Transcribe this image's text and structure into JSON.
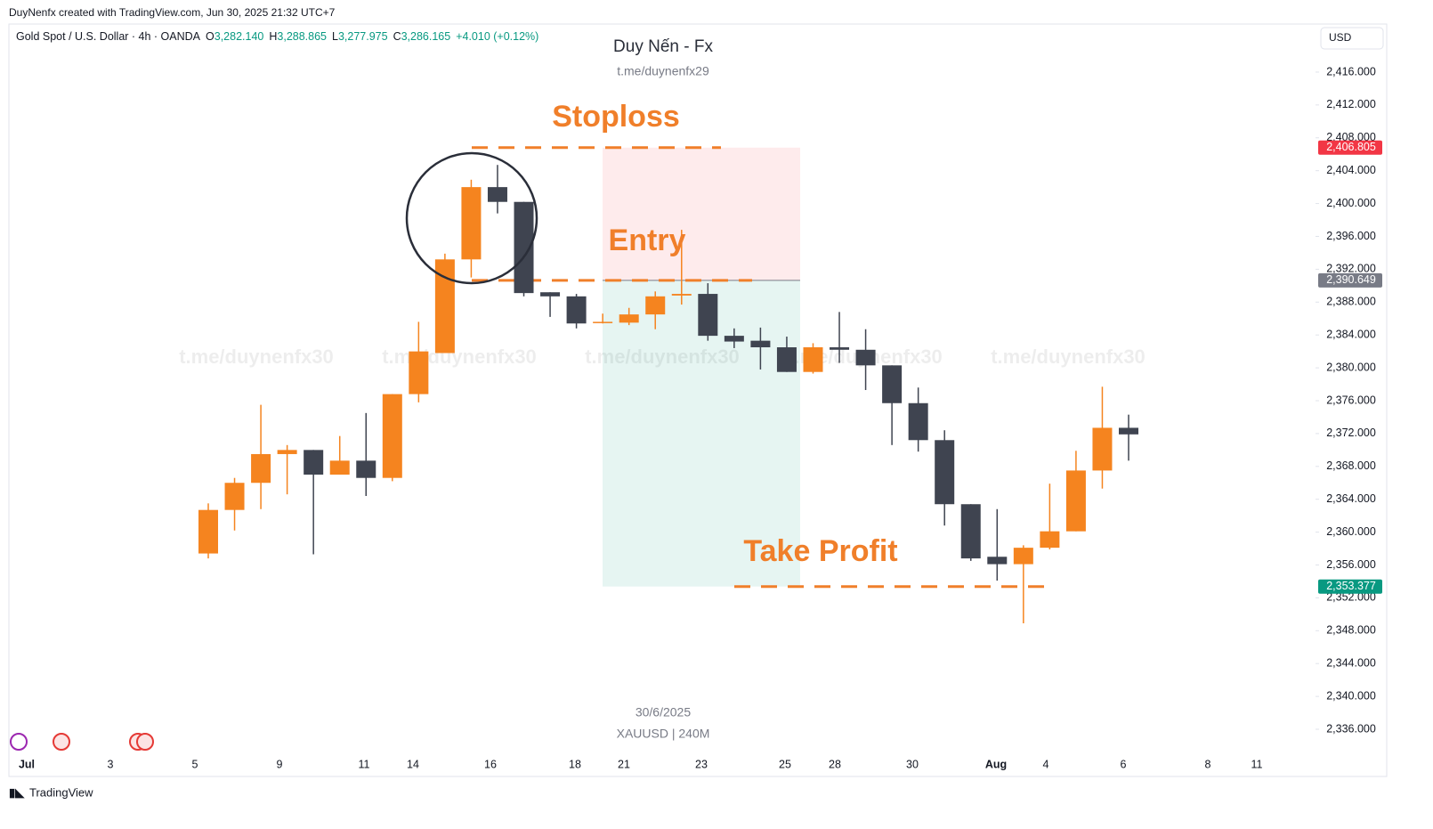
{
  "header": {
    "credit": "DuyNenfx created with TradingView.com, Jun 30, 2025 21:32 UTC+7",
    "symbol": "Gold Spot / U.S. Dollar · 4h · OANDA",
    "o_label": "O",
    "o": "3,282.140",
    "h_label": "H",
    "h": "3,288.865",
    "l_label": "L",
    "l": "3,277.975",
    "c_label": "C",
    "c": "3,286.165",
    "change": "+4.010 (+0.12%)",
    "currency": "USD",
    "brand": "TradingView"
  },
  "chart_data": {
    "type": "candlestick",
    "title": "Duy Nến - Fx",
    "subtitle": "t.me/duynenfx29",
    "footer_date": "30/6/2025",
    "footer_symbol": "XAUUSD | 240M",
    "watermarks": [
      "t.me/duynenfx30",
      "t.me/duynenfx30",
      "t.me/duynenfx30",
      "t.me/duynenfx30",
      "t.me/duynenfx30"
    ],
    "up_color": "#f5841f",
    "down_color": "#3f4450",
    "series": {
      "open": [
        2357.4,
        2362.7,
        2366.0,
        2369.5,
        2370.0,
        2367.0,
        2368.7,
        2366.6,
        2376.8,
        2381.8,
        2393.2,
        2402.0,
        2400.2,
        2389.2,
        2388.7,
        2385.5,
        2385.5,
        2386.5,
        2388.8,
        2389.0,
        2383.9,
        2383.3,
        2382.5,
        2379.5,
        2382.5,
        2382.2,
        2380.3,
        2375.7,
        2371.2,
        2363.4,
        2357.0,
        2356.1,
        2358.1,
        2360.1,
        2367.5,
        2372.7
      ],
      "high": [
        2363.5,
        2366.6,
        2375.5,
        2370.6,
        2370.0,
        2371.7,
        2374.5,
        2376.8,
        2385.6,
        2393.9,
        2402.9,
        2404.7,
        2400.2,
        2389.2,
        2389.0,
        2386.6,
        2387.3,
        2389.3,
        2396.8,
        2390.3,
        2384.8,
        2384.9,
        2383.8,
        2383.0,
        2386.8,
        2384.7,
        2380.3,
        2377.6,
        2372.4,
        2363.4,
        2362.8,
        2358.4,
        2365.9,
        2369.9,
        2377.7,
        2374.3
      ],
      "low": [
        2356.8,
        2360.2,
        2362.8,
        2364.6,
        2357.3,
        2367.0,
        2364.4,
        2366.2,
        2375.8,
        2381.8,
        2391.0,
        2398.8,
        2388.7,
        2386.2,
        2384.8,
        2385.4,
        2385.2,
        2384.7,
        2387.7,
        2383.3,
        2382.4,
        2379.8,
        2379.5,
        2379.3,
        2380.6,
        2377.3,
        2370.6,
        2369.8,
        2360.8,
        2356.5,
        2354.1,
        2348.9,
        2357.9,
        2360.1,
        2365.3,
        2368.7
      ],
      "close": [
        2362.7,
        2366.0,
        2369.5,
        2370.0,
        2367.0,
        2368.7,
        2366.6,
        2376.8,
        2382.0,
        2393.2,
        2402.0,
        2400.2,
        2389.1,
        2388.7,
        2385.4,
        2385.6,
        2386.5,
        2388.7,
        2389.0,
        2383.9,
        2383.2,
        2382.5,
        2379.5,
        2382.5,
        2382.2,
        2380.3,
        2375.7,
        2371.2,
        2363.4,
        2356.8,
        2356.1,
        2358.1,
        2360.1,
        2367.5,
        2372.7,
        2371.9
      ]
    },
    "ylim": [
      2333.4,
      2421.85
    ],
    "yticks": [
      {
        "value": 2336,
        "label": "2,336.000"
      },
      {
        "value": 2340,
        "label": "2,340.000"
      },
      {
        "value": 2344,
        "label": "2,344.000"
      },
      {
        "value": 2348,
        "label": "2,348.000"
      },
      {
        "value": 2352,
        "label": "2,352.000"
      },
      {
        "value": 2356,
        "label": "2,356.000"
      },
      {
        "value": 2360,
        "label": "2,360.000"
      },
      {
        "value": 2364,
        "label": "2,364.000"
      },
      {
        "value": 2368,
        "label": "2,368.000"
      },
      {
        "value": 2372,
        "label": "2,372.000"
      },
      {
        "value": 2376,
        "label": "2,376.000"
      },
      {
        "value": 2380,
        "label": "2,380.000"
      },
      {
        "value": 2384,
        "label": "2,384.000"
      },
      {
        "value": 2388,
        "label": "2,388.000"
      },
      {
        "value": 2392,
        "label": "2,392.000"
      },
      {
        "value": 2396,
        "label": "2,396.000"
      },
      {
        "value": 2400,
        "label": "2,400.000"
      },
      {
        "value": 2404,
        "label": "2,404.000"
      },
      {
        "value": 2408,
        "label": "2,408.000"
      },
      {
        "value": 2412,
        "label": "2,412.000"
      },
      {
        "value": 2416,
        "label": "2,416.000"
      }
    ],
    "xlabels": [
      "Jul",
      "3",
      "5",
      "9",
      "11",
      "14",
      "16",
      "18",
      "21",
      "23",
      "25",
      "28",
      "30",
      "Aug",
      "4",
      "6",
      "8",
      "11"
    ],
    "price_tags": [
      {
        "value": 2406.805,
        "label": "2,406.805",
        "color": "#f23645"
      },
      {
        "value": 2390.649,
        "label": "2,390.649",
        "color": "#787b86"
      },
      {
        "value": 2353.377,
        "label": "2,353.377",
        "color": "#089981"
      }
    ],
    "annotations": [
      "Stoploss",
      "Entry",
      "Take Profit"
    ],
    "annotation_color": "#f07f2a"
  }
}
